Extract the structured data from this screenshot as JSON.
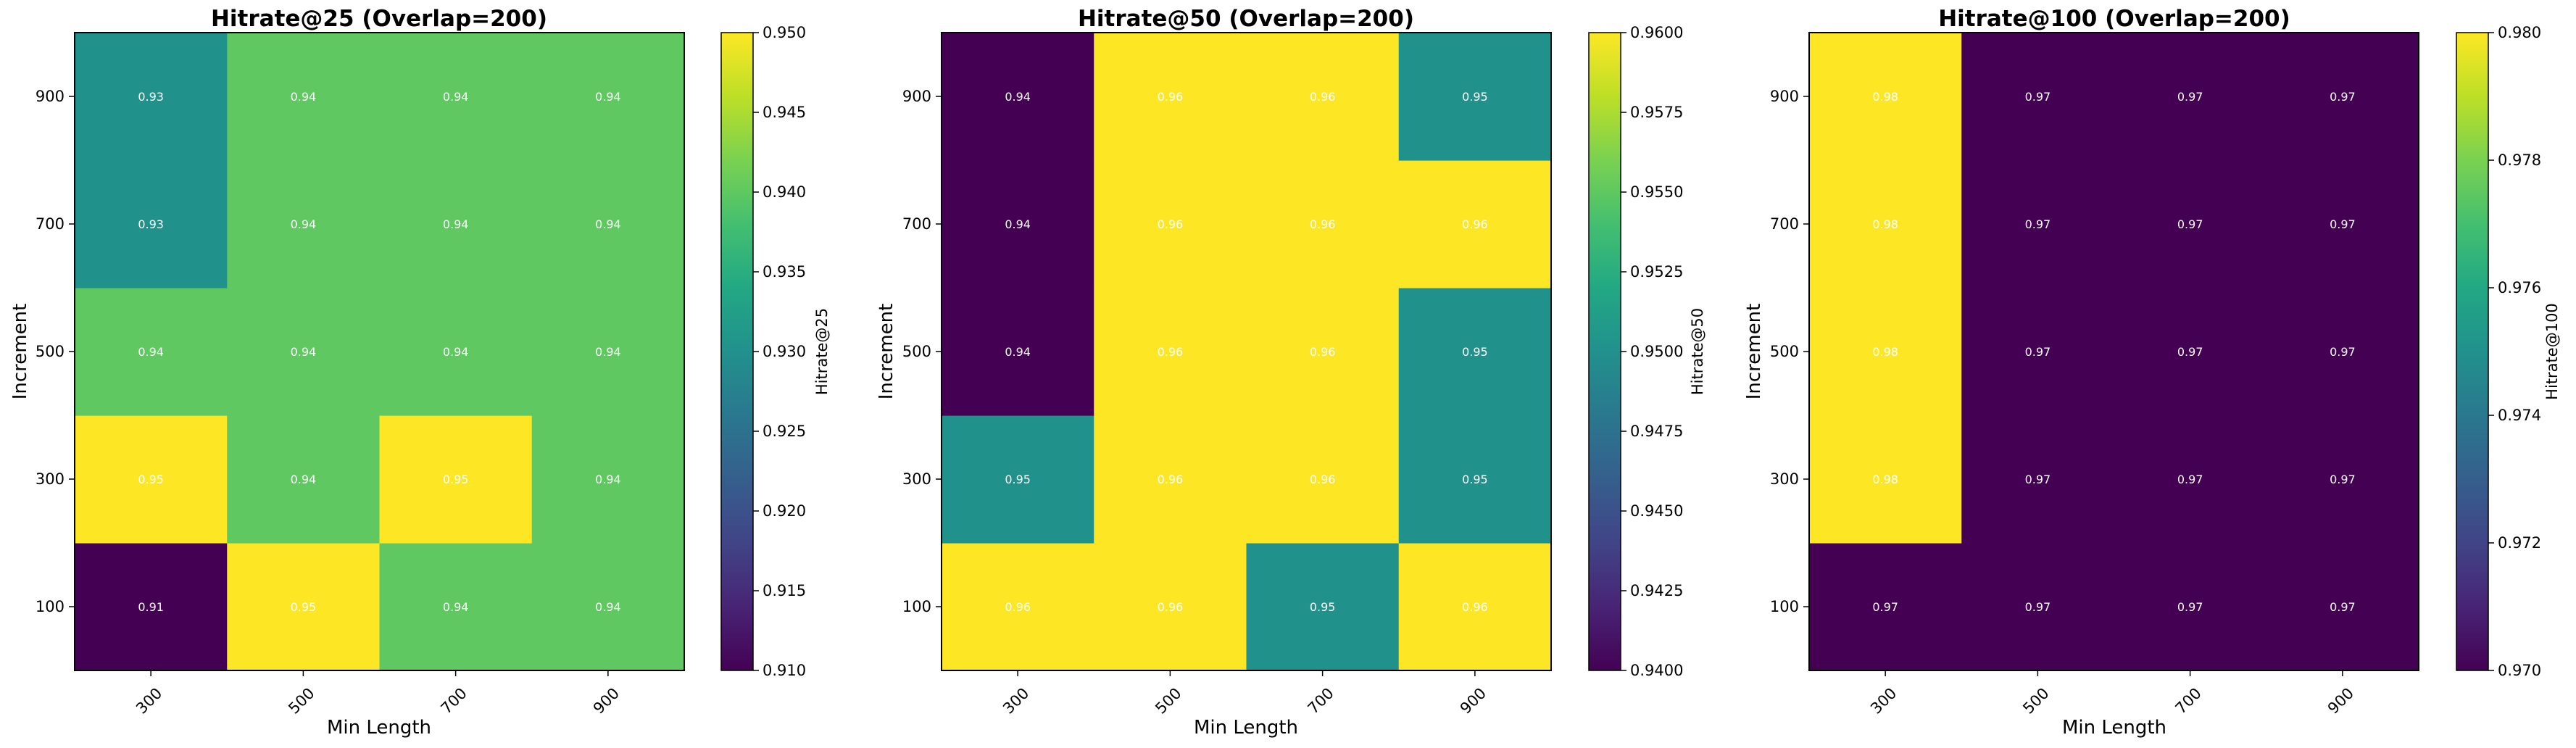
{
  "chart_data": [
    {
      "type": "heatmap",
      "title": "Hitrate@25 (Overlap=200)",
      "xlabel": "Min Length",
      "ylabel": "Increment",
      "x": [
        "300",
        "500",
        "700",
        "900"
      ],
      "y": [
        "100",
        "300",
        "500",
        "700",
        "900"
      ],
      "values": [
        [
          0.91,
          0.95,
          0.94,
          0.94
        ],
        [
          0.95,
          0.94,
          0.95,
          0.94
        ],
        [
          0.94,
          0.94,
          0.94,
          0.94
        ],
        [
          0.93,
          0.94,
          0.94,
          0.94
        ],
        [
          0.93,
          0.94,
          0.94,
          0.94
        ]
      ],
      "colorbar": {
        "label": "Hitrate@25",
        "range": [
          0.91,
          0.95
        ],
        "ticks": [
          "0.910",
          "0.915",
          "0.920",
          "0.925",
          "0.930",
          "0.935",
          "0.940",
          "0.945",
          "0.950"
        ]
      },
      "colormap": "viridis"
    },
    {
      "type": "heatmap",
      "title": "Hitrate@50 (Overlap=200)",
      "xlabel": "Min Length",
      "ylabel": "Increment",
      "x": [
        "300",
        "500",
        "700",
        "900"
      ],
      "y": [
        "100",
        "300",
        "500",
        "700",
        "900"
      ],
      "values": [
        [
          0.96,
          0.96,
          0.95,
          0.96
        ],
        [
          0.95,
          0.96,
          0.96,
          0.95
        ],
        [
          0.94,
          0.96,
          0.96,
          0.95
        ],
        [
          0.94,
          0.96,
          0.96,
          0.96
        ],
        [
          0.94,
          0.96,
          0.96,
          0.95
        ]
      ],
      "colorbar": {
        "label": "Hitrate@50",
        "range": [
          0.94,
          0.96
        ],
        "ticks": [
          "0.9400",
          "0.9425",
          "0.9450",
          "0.9475",
          "0.9500",
          "0.9525",
          "0.9550",
          "0.9575",
          "0.9600"
        ]
      },
      "colormap": "viridis"
    },
    {
      "type": "heatmap",
      "title": "Hitrate@100 (Overlap=200)",
      "xlabel": "Min Length",
      "ylabel": "Increment",
      "x": [
        "300",
        "500",
        "700",
        "900"
      ],
      "y": [
        "100",
        "300",
        "500",
        "700",
        "900"
      ],
      "values": [
        [
          0.97,
          0.97,
          0.97,
          0.97
        ],
        [
          0.98,
          0.97,
          0.97,
          0.97
        ],
        [
          0.98,
          0.97,
          0.97,
          0.97
        ],
        [
          0.98,
          0.97,
          0.97,
          0.97
        ],
        [
          0.98,
          0.97,
          0.97,
          0.97
        ]
      ],
      "colorbar": {
        "label": "Hitrate@100",
        "range": [
          0.97,
          0.98
        ],
        "ticks": [
          "0.970",
          "0.972",
          "0.974",
          "0.976",
          "0.978",
          "0.980"
        ]
      },
      "colormap": "viridis"
    }
  ]
}
